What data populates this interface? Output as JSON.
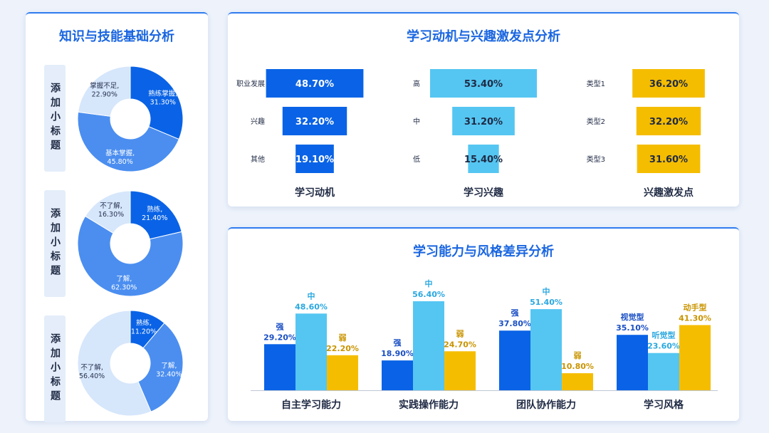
{
  "left": {
    "title": "知识与技能基础分析",
    "subtitle_label": "添加小标题"
  },
  "top": {
    "title": "学习动机与兴趣激发点分析"
  },
  "bottom": {
    "title": "学习能力与风格差异分析"
  },
  "colors": {
    "dark_blue": "#0a63e6",
    "mid_blue": "#4b8ef0",
    "light_blue": "#9cc2f5",
    "pale_blue": "#d6e6fb",
    "cyan": "#55c6f2",
    "gold": "#f5bd00"
  },
  "chart_data": [
    {
      "id": "pie1",
      "type": "pie",
      "slices": [
        {
          "label": "熟练掌握,",
          "value": 31.3,
          "value_text": "31.30%"
        },
        {
          "label": "基本掌握,",
          "value": 45.8,
          "value_text": "45.80%"
        },
        {
          "label": "掌握不足,",
          "value": 22.9,
          "value_text": "22.90%"
        }
      ]
    },
    {
      "id": "pie2",
      "type": "pie",
      "slices": [
        {
          "label": "熟练,",
          "value": 21.4,
          "value_text": "21.40%"
        },
        {
          "label": "了解,",
          "value": 62.3,
          "value_text": "62.30%"
        },
        {
          "label": "不了解,",
          "value": 16.3,
          "value_text": "16.30%"
        }
      ]
    },
    {
      "id": "pie3",
      "type": "pie",
      "slices": [
        {
          "label": "熟练,",
          "value": 11.2,
          "value_text": "11.20%"
        },
        {
          "label": "了解,",
          "value": 32.4,
          "value_text": "32.40%"
        },
        {
          "label": "不了解,",
          "value": 56.4,
          "value_text": "56.40%"
        }
      ]
    },
    {
      "id": "motivation",
      "type": "bar",
      "orientation": "horizontal-funnel",
      "xlabel": "学习动机",
      "categories": [
        "职业发展",
        "兴趣",
        "其他"
      ],
      "values": [
        48.7,
        32.2,
        19.1
      ],
      "value_texts": [
        "48.70%",
        "32.20%",
        "19.10%"
      ]
    },
    {
      "id": "interest",
      "type": "bar",
      "orientation": "horizontal-funnel",
      "xlabel": "学习兴趣",
      "categories": [
        "高",
        "中",
        "低"
      ],
      "values": [
        53.4,
        31.2,
        15.4
      ],
      "value_texts": [
        "53.40%",
        "31.20%",
        "15.40%"
      ]
    },
    {
      "id": "stimulus",
      "type": "bar",
      "orientation": "horizontal-funnel",
      "xlabel": "兴趣激发点",
      "categories": [
        "类型1",
        "类型2",
        "类型3"
      ],
      "values": [
        36.2,
        32.2,
        31.6
      ],
      "value_texts": [
        "36.20%",
        "32.20%",
        "31.60%"
      ]
    },
    {
      "id": "ability",
      "type": "bar",
      "groups": [
        {
          "category": "自主学习能力",
          "bars": [
            {
              "name": "强",
              "value": 29.2,
              "value_text": "29.20%"
            },
            {
              "name": "中",
              "value": 48.6,
              "value_text": "48.60%"
            },
            {
              "name": "弱",
              "value": 22.2,
              "value_text": "22.20%"
            }
          ]
        },
        {
          "category": "实践操作能力",
          "bars": [
            {
              "name": "强",
              "value": 18.9,
              "value_text": "18.90%"
            },
            {
              "name": "中",
              "value": 56.4,
              "value_text": "56.40%"
            },
            {
              "name": "弱",
              "value": 24.7,
              "value_text": "24.70%"
            }
          ]
        },
        {
          "category": "团队协作能力",
          "bars": [
            {
              "name": "强",
              "value": 37.8,
              "value_text": "37.80%"
            },
            {
              "name": "中",
              "value": 51.4,
              "value_text": "51.40%"
            },
            {
              "name": "弱",
              "value": 10.8,
              "value_text": "10.80%"
            }
          ]
        },
        {
          "category": "学习风格",
          "bars": [
            {
              "name": "视觉型",
              "value": 35.1,
              "value_text": "35.10%"
            },
            {
              "name": "听觉型",
              "value": 23.6,
              "value_text": "23.60%"
            },
            {
              "name": "动手型",
              "value": 41.3,
              "value_text": "41.30%"
            }
          ]
        }
      ],
      "ylim": [
        0,
        60
      ]
    }
  ]
}
